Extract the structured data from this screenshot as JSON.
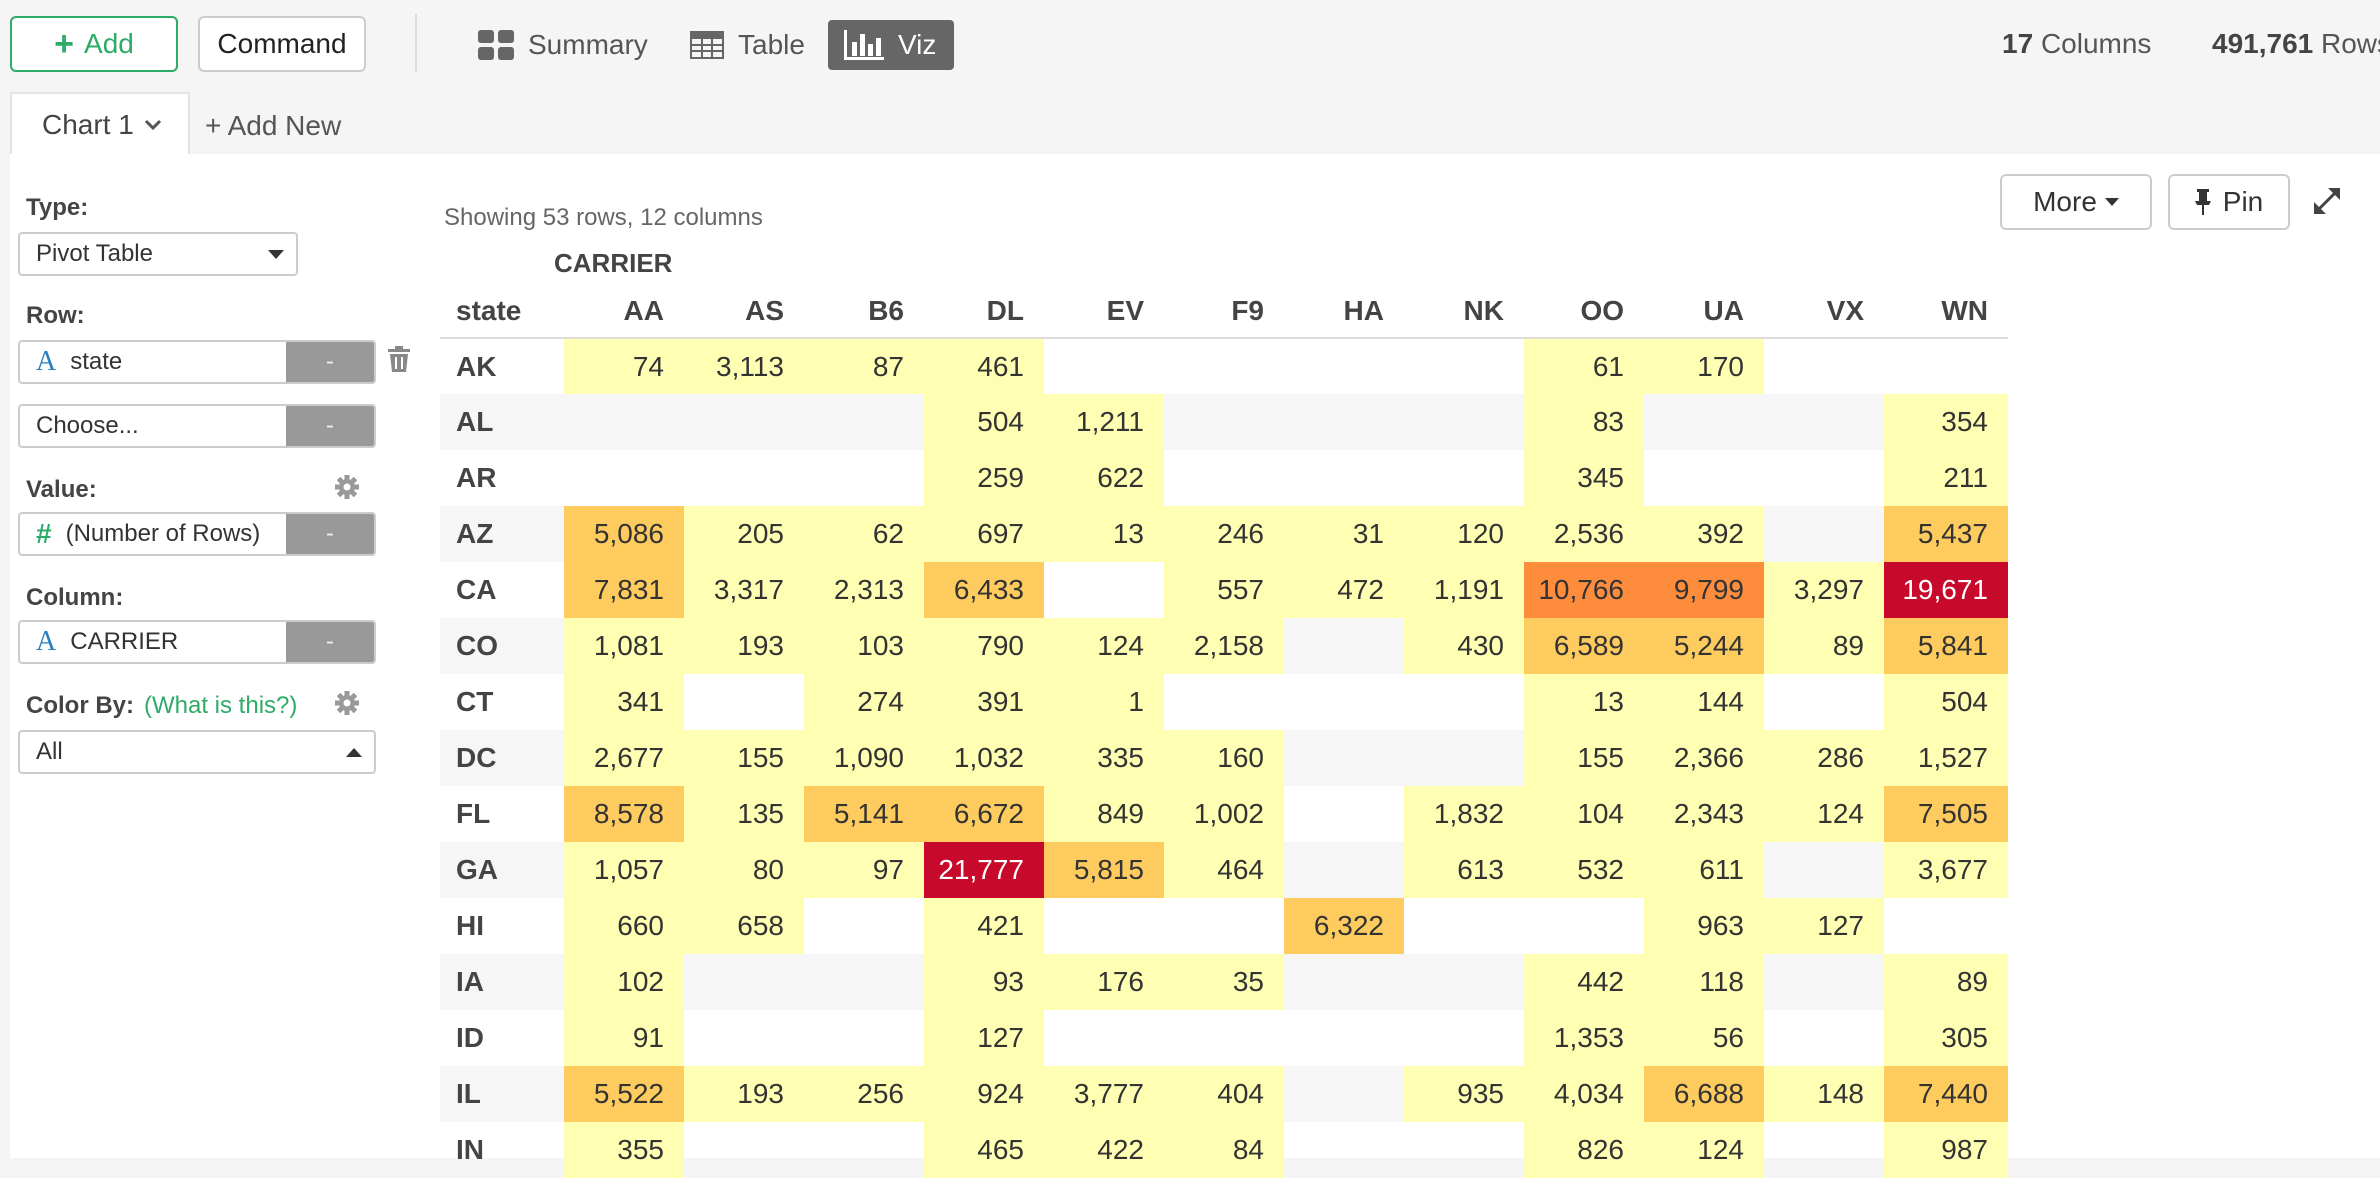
{
  "toolbar": {
    "add_label": "Add",
    "command_label": "Command",
    "modes": [
      "Summary",
      "Table",
      "Viz"
    ],
    "active_mode": "Viz",
    "columns_count": "17",
    "columns_label": "Columns",
    "rows_count": "491,761",
    "rows_label": "Rows"
  },
  "tabs": {
    "active": "Chart 1",
    "add_new": "+ Add New"
  },
  "sidebar": {
    "type_label": "Type:",
    "type_value": "Pivot Table",
    "row_label": "Row:",
    "row_field": "state",
    "row_choose": "Choose...",
    "value_label": "Value:",
    "value_field": "(Number of Rows)",
    "column_label": "Column:",
    "column_field": "CARRIER",
    "color_by_label": "Color By:",
    "color_by_help": "(What is this?)",
    "color_by_value": "All",
    "remove_label": "-"
  },
  "content": {
    "showing": "Showing 53 rows, 12 columns",
    "more_label": "More",
    "pin_label": "Pin"
  },
  "pivot": {
    "column_group": "CARRIER",
    "row_header": "state",
    "columns": [
      "AA",
      "AS",
      "B6",
      "DL",
      "EV",
      "F9",
      "HA",
      "NK",
      "OO",
      "UA",
      "VX",
      "WN"
    ],
    "rows": [
      {
        "state": "AK",
        "cells": [
          "74",
          "3,113",
          "87",
          "461",
          "",
          "",
          "",
          "",
          "61",
          "170",
          "",
          ""
        ]
      },
      {
        "state": "AL",
        "cells": [
          "",
          "",
          "",
          "504",
          "1,211",
          "",
          "",
          "",
          "83",
          "",
          "",
          "354"
        ]
      },
      {
        "state": "AR",
        "cells": [
          "",
          "",
          "",
          "259",
          "622",
          "",
          "",
          "",
          "345",
          "",
          "",
          "211"
        ]
      },
      {
        "state": "AZ",
        "cells": [
          "5,086",
          "205",
          "62",
          "697",
          "13",
          "246",
          "31",
          "120",
          "2,536",
          "392",
          "",
          "5,437"
        ]
      },
      {
        "state": "CA",
        "cells": [
          "7,831",
          "3,317",
          "2,313",
          "6,433",
          "",
          "557",
          "472",
          "1,191",
          "10,766",
          "9,799",
          "3,297",
          "19,671"
        ]
      },
      {
        "state": "CO",
        "cells": [
          "1,081",
          "193",
          "103",
          "790",
          "124",
          "2,158",
          "",
          "430",
          "6,589",
          "5,244",
          "89",
          "5,841"
        ]
      },
      {
        "state": "CT",
        "cells": [
          "341",
          "",
          "274",
          "391",
          "1",
          "",
          "",
          "",
          "13",
          "144",
          "",
          "504"
        ]
      },
      {
        "state": "DC",
        "cells": [
          "2,677",
          "155",
          "1,090",
          "1,032",
          "335",
          "160",
          "",
          "",
          "155",
          "2,366",
          "286",
          "1,527"
        ]
      },
      {
        "state": "FL",
        "cells": [
          "8,578",
          "135",
          "5,141",
          "6,672",
          "849",
          "1,002",
          "",
          "1,832",
          "104",
          "2,343",
          "124",
          "7,505"
        ]
      },
      {
        "state": "GA",
        "cells": [
          "1,057",
          "80",
          "97",
          "21,777",
          "5,815",
          "464",
          "",
          "613",
          "532",
          "611",
          "",
          "3,677"
        ]
      },
      {
        "state": "HI",
        "cells": [
          "660",
          "658",
          "",
          "421",
          "",
          "",
          "6,322",
          "",
          "",
          "963",
          "127",
          ""
        ]
      },
      {
        "state": "IA",
        "cells": [
          "102",
          "",
          "",
          "93",
          "176",
          "35",
          "",
          "",
          "442",
          "118",
          "",
          "89"
        ]
      },
      {
        "state": "ID",
        "cells": [
          "91",
          "",
          "",
          "127",
          "",
          "",
          "",
          "",
          "1,353",
          "56",
          "",
          "305"
        ]
      },
      {
        "state": "IL",
        "cells": [
          "5,522",
          "193",
          "256",
          "924",
          "3,777",
          "404",
          "",
          "935",
          "4,034",
          "6,688",
          "148",
          "7,440"
        ]
      },
      {
        "state": "IN",
        "cells": [
          "355",
          "",
          "",
          "465",
          "422",
          "84",
          "",
          "",
          "826",
          "124",
          "",
          "987"
        ]
      }
    ],
    "color_scale": [
      "#ffffb3",
      "#fecb5e",
      "#fd8d3c",
      "#c70a2c"
    ]
  }
}
